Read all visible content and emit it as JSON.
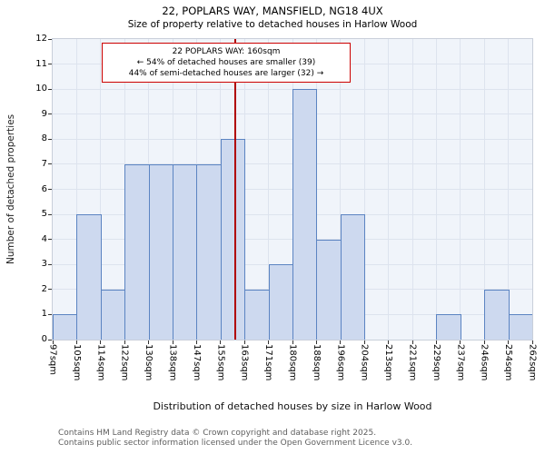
{
  "title": "22, POPLARS WAY, MANSFIELD, NG18 4UX",
  "subtitle": "Size of property relative to detached houses in Harlow Wood",
  "annotation": {
    "line1": "22 POPLARS WAY: 160sqm",
    "line2": "← 54% of detached houses are smaller (39)",
    "line3": "44% of semi-detached houses are larger (32) →"
  },
  "footer": {
    "line1": "Contains HM Land Registry data © Crown copyright and database right 2025.",
    "line2": "Contains public sector information licensed under the Open Government Licence v3.0."
  },
  "chart_data": {
    "type": "bar",
    "title": "Size of property relative to detached houses in Harlow Wood",
    "xlabel": "Distribution of detached houses by size in Harlow Wood",
    "ylabel": "Number of detached properties",
    "x_tick_labels": [
      "97sqm",
      "105sqm",
      "114sqm",
      "122sqm",
      "130sqm",
      "138sqm",
      "147sqm",
      "155sqm",
      "163sqm",
      "171sqm",
      "180sqm",
      "188sqm",
      "196sqm",
      "204sqm",
      "213sqm",
      "221sqm",
      "229sqm",
      "237sqm",
      "246sqm",
      "254sqm",
      "262sqm"
    ],
    "x_tick_values": [
      97,
      105,
      114,
      122,
      130,
      138,
      147,
      155,
      163,
      171,
      180,
      188,
      196,
      204,
      213,
      221,
      229,
      237,
      246,
      254,
      262
    ],
    "values": [
      1,
      5,
      2,
      7,
      7,
      7,
      7,
      8,
      2,
      3,
      10,
      4,
      5,
      0,
      0,
      0,
      1,
      0,
      2,
      1
    ],
    "y_ticks": [
      0,
      1,
      2,
      3,
      4,
      5,
      6,
      7,
      8,
      9,
      10,
      11,
      12
    ],
    "ylim": [
      0,
      12
    ],
    "grid": true,
    "legend": "none",
    "marker_value": 160,
    "marker_label": "22 POPLARS WAY: 160sqm",
    "colors": {
      "bar_fill": "#cdd9ef",
      "bar_border": "#5b84c2",
      "marker_line": "#b00000",
      "annotation_border": "#cc0000",
      "grid": "#dde3ee",
      "plot_bg": "#f0f4fa"
    }
  }
}
